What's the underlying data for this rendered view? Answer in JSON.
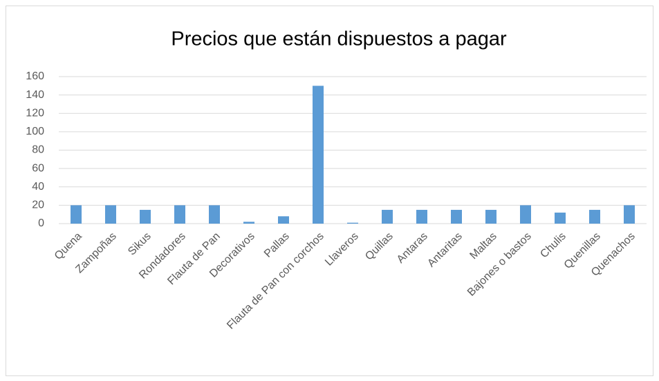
{
  "chart_data": {
    "type": "bar",
    "title": "Precios que están dispuestos a pagar",
    "categories": [
      "Quena",
      "Zampoñas",
      "Sikus",
      "Rondadores",
      "Flauta de Pan",
      "Decorativos",
      "Pallas",
      "Flauta de Pan con corchos",
      "Llaveros",
      "Quillas",
      "Antaras",
      "Antaritas",
      "Maltas",
      "Bajones o bastos",
      "Chulis",
      "Quenillas",
      "Quenachos"
    ],
    "values": [
      20,
      20,
      15,
      20,
      20,
      2,
      8,
      150,
      1,
      15,
      15,
      15,
      15,
      20,
      12,
      15,
      20
    ],
    "color": "#5b9bd5",
    "ylim": [
      0,
      160
    ],
    "yticks": [
      0,
      20,
      40,
      60,
      80,
      100,
      120,
      140,
      160
    ],
    "grid": true
  }
}
